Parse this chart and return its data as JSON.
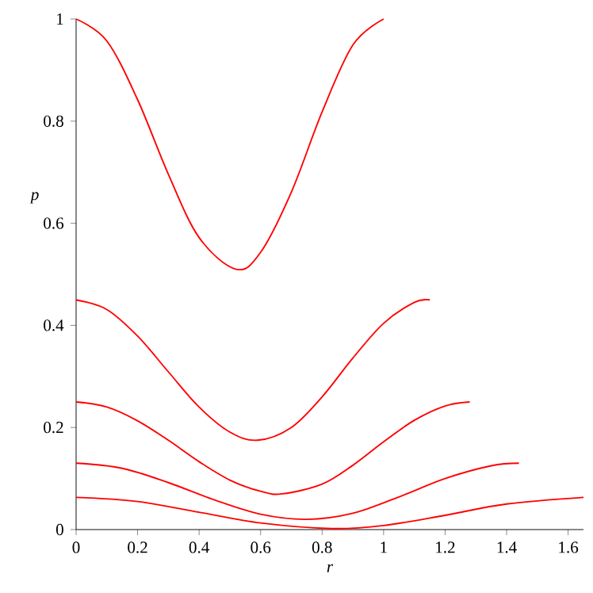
{
  "chart_data": {
    "type": "line",
    "xlabel": "r",
    "ylabel": "p",
    "xlim": [
      0,
      1.65
    ],
    "ylim": [
      0,
      1
    ],
    "xticks": [
      0,
      0.2,
      0.4,
      0.6,
      0.8,
      1,
      1.2,
      1.4,
      1.6
    ],
    "yticks": [
      0,
      0.2,
      0.4,
      0.6,
      0.8,
      1
    ],
    "grid": false,
    "series": [
      {
        "color": "#ff0000",
        "x": [
          0,
          0.1,
          0.2,
          0.3,
          0.4,
          0.52,
          0.6,
          0.7,
          0.8,
          0.9,
          1.0
        ],
        "values": [
          1,
          0.957,
          0.842,
          0.696,
          0.572,
          0.51,
          0.543,
          0.661,
          0.818,
          0.949,
          1
        ]
      },
      {
        "color": "#ff0000",
        "x": [
          0,
          0.1,
          0.2,
          0.3,
          0.4,
          0.5,
          0.59,
          0.7,
          0.8,
          0.9,
          1.0,
          1.1,
          1.15
        ],
        "values": [
          0.45,
          0.431,
          0.379,
          0.309,
          0.24,
          0.191,
          0.175,
          0.2,
          0.26,
          0.336,
          0.404,
          0.445,
          0.45
        ]
      },
      {
        "color": "#ff0000",
        "x": [
          0,
          0.1,
          0.2,
          0.3,
          0.4,
          0.5,
          0.6,
          0.67,
          0.8,
          0.9,
          1.0,
          1.1,
          1.2,
          1.28
        ],
        "values": [
          0.25,
          0.24,
          0.213,
          0.175,
          0.133,
          0.097,
          0.075,
          0.07,
          0.089,
          0.126,
          0.172,
          0.214,
          0.242,
          0.25
        ]
      },
      {
        "color": "#ff0000",
        "x": [
          0,
          0.15,
          0.3,
          0.45,
          0.6,
          0.75,
          0.9,
          1.05,
          1.2,
          1.35,
          1.44
        ],
        "values": [
          0.13,
          0.12,
          0.092,
          0.058,
          0.03,
          0.02,
          0.032,
          0.064,
          0.1,
          0.125,
          0.13
        ]
      },
      {
        "color": "#ff0000",
        "x": [
          0,
          0.2,
          0.4,
          0.6,
          0.83,
          1.0,
          1.2,
          1.4,
          1.65
        ],
        "values": [
          0.063,
          0.055,
          0.034,
          0.013,
          0.002,
          0.008,
          0.028,
          0.05,
          0.063
        ]
      }
    ]
  }
}
